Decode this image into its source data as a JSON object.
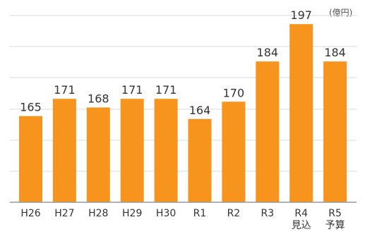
{
  "chart_data": {
    "type": "bar",
    "unit": "(億円)",
    "categories": [
      "H26",
      "H27",
      "H28",
      "H29",
      "H30",
      "R1",
      "R2",
      "R3",
      "R4",
      "R5"
    ],
    "category_sublabels": [
      "",
      "",
      "",
      "",
      "",
      "",
      "",
      "",
      "見込",
      "予算"
    ],
    "values": [
      165,
      171,
      168,
      171,
      171,
      164,
      170,
      184,
      197,
      184
    ],
    "value_labels": [
      "165",
      "171",
      "168",
      "171",
      "171",
      "164",
      "170",
      "184",
      "197",
      "184"
    ],
    "ylim": [
      135,
      200
    ],
    "grid": true,
    "bar_color": "#F7941D",
    "grid_color": "#D9D9D9",
    "axis_color": "#999999"
  }
}
